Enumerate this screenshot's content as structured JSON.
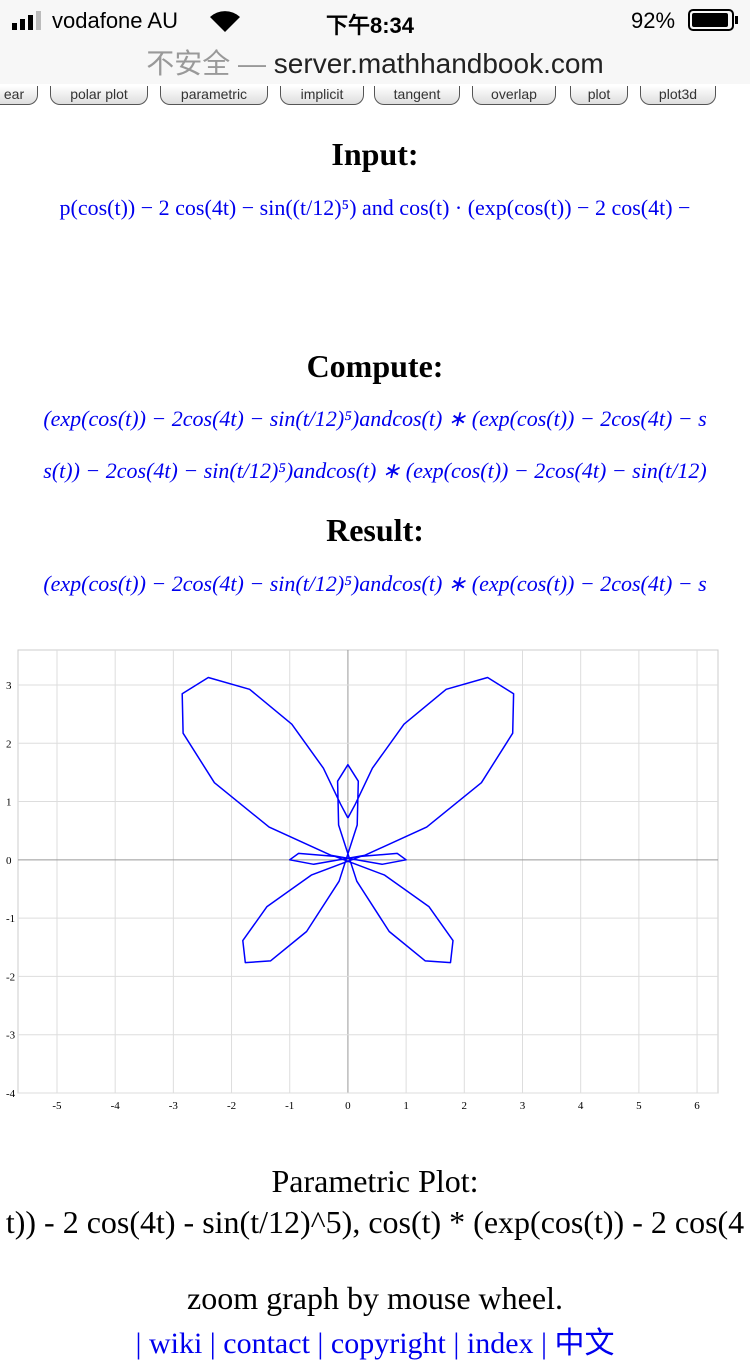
{
  "status_bar": {
    "carrier": "vodafone AU",
    "time": "下午8:34",
    "battery": "92%"
  },
  "address_bar": {
    "security": "不安全 —",
    "url": "server.mathhandbook.com"
  },
  "tabs": [
    "ear",
    "polar plot",
    "parametric",
    "implicit",
    "tangent",
    "overlap",
    "plot",
    "plot3d"
  ],
  "input": {
    "heading": "Input:",
    "formula": "p(cos(t)) − 2 cos(4t) − sin((t/12)⁵) and cos(t) · (exp(cos(t)) − 2 cos(4t) −"
  },
  "compute": {
    "heading": "Compute:",
    "lines": [
      "(exp(cos(t)) − 2cos(4t) − sin(t/12)⁵)andcos(t) ∗ (exp(cos(t)) − 2cos(4t) − s",
      "s(t)) − 2cos(4t) − sin(t/12)⁵)andcos(t) ∗ (exp(cos(t)) − 2cos(4t) − sin(t/12)"
    ]
  },
  "result": {
    "heading": "Result:",
    "line": "(exp(cos(t)) − 2cos(4t) − sin(t/12)⁵)andcos(t) ∗ (exp(cos(t)) − 2cos(4t) − s"
  },
  "chart_data": {
    "type": "line",
    "color": "#0000ff",
    "grid": true,
    "xlim": [
      -5.67,
      6.36
    ],
    "ylim": [
      -4,
      3.6
    ],
    "xticks": [
      -5,
      -4,
      -3,
      -2,
      -1,
      0,
      1,
      2,
      3,
      4,
      5,
      6
    ],
    "yticks": [
      -4,
      -3,
      -2,
      -1,
      0,
      1,
      2,
      3
    ],
    "x": [
      0,
      0.126,
      0.421,
      0.964,
      1.689,
      2.4,
      2.848,
      2.832,
      2.294,
      1.354,
      0.285,
      -0.588,
      -1,
      -0.847,
      -0.22,
      0.63,
      1.391,
      1.806,
      1.763,
      1.33,
      0.71,
      0.152,
      -0.16,
      -0.178,
      0,
      0.178,
      0.16,
      -0.152,
      -0.71,
      -1.33,
      -1.763,
      -1.806,
      -1.391,
      -0.63,
      0.22,
      0.847,
      1,
      0.588,
      -0.285,
      -1.354,
      -2.294,
      -2.832,
      -2.848,
      -2.4,
      -1.689,
      -0.964,
      -0.421,
      -0.126,
      0
    ],
    "values": [
      0.718,
      0.955,
      1.572,
      2.327,
      2.925,
      3.128,
      2.848,
      2.173,
      1.324,
      0.561,
      0.076,
      -0.077,
      0,
      0.111,
      0.059,
      -0.261,
      -0.803,
      -1.386,
      -1.763,
      -1.733,
      -1.23,
      -0.367,
      0.598,
      1.349,
      1.632,
      1.349,
      0.598,
      -0.367,
      -1.23,
      -1.733,
      -1.763,
      -1.386,
      -0.803,
      -0.261,
      0.059,
      0.111,
      0,
      -0.077,
      0.076,
      0.561,
      1.324,
      2.173,
      2.848,
      3.128,
      2.925,
      2.327,
      1.572,
      0.955,
      0.718
    ]
  },
  "plot_caption": {
    "title": "Parametric Plot:",
    "formula": "t)) - 2 cos(4t) - sin(t/12)^5), cos(t) * (exp(cos(t)) - 2 cos(4"
  },
  "hint": "zoom graph by mouse wheel.",
  "footer_links": "| wiki | contact | copyright | index | 中文"
}
